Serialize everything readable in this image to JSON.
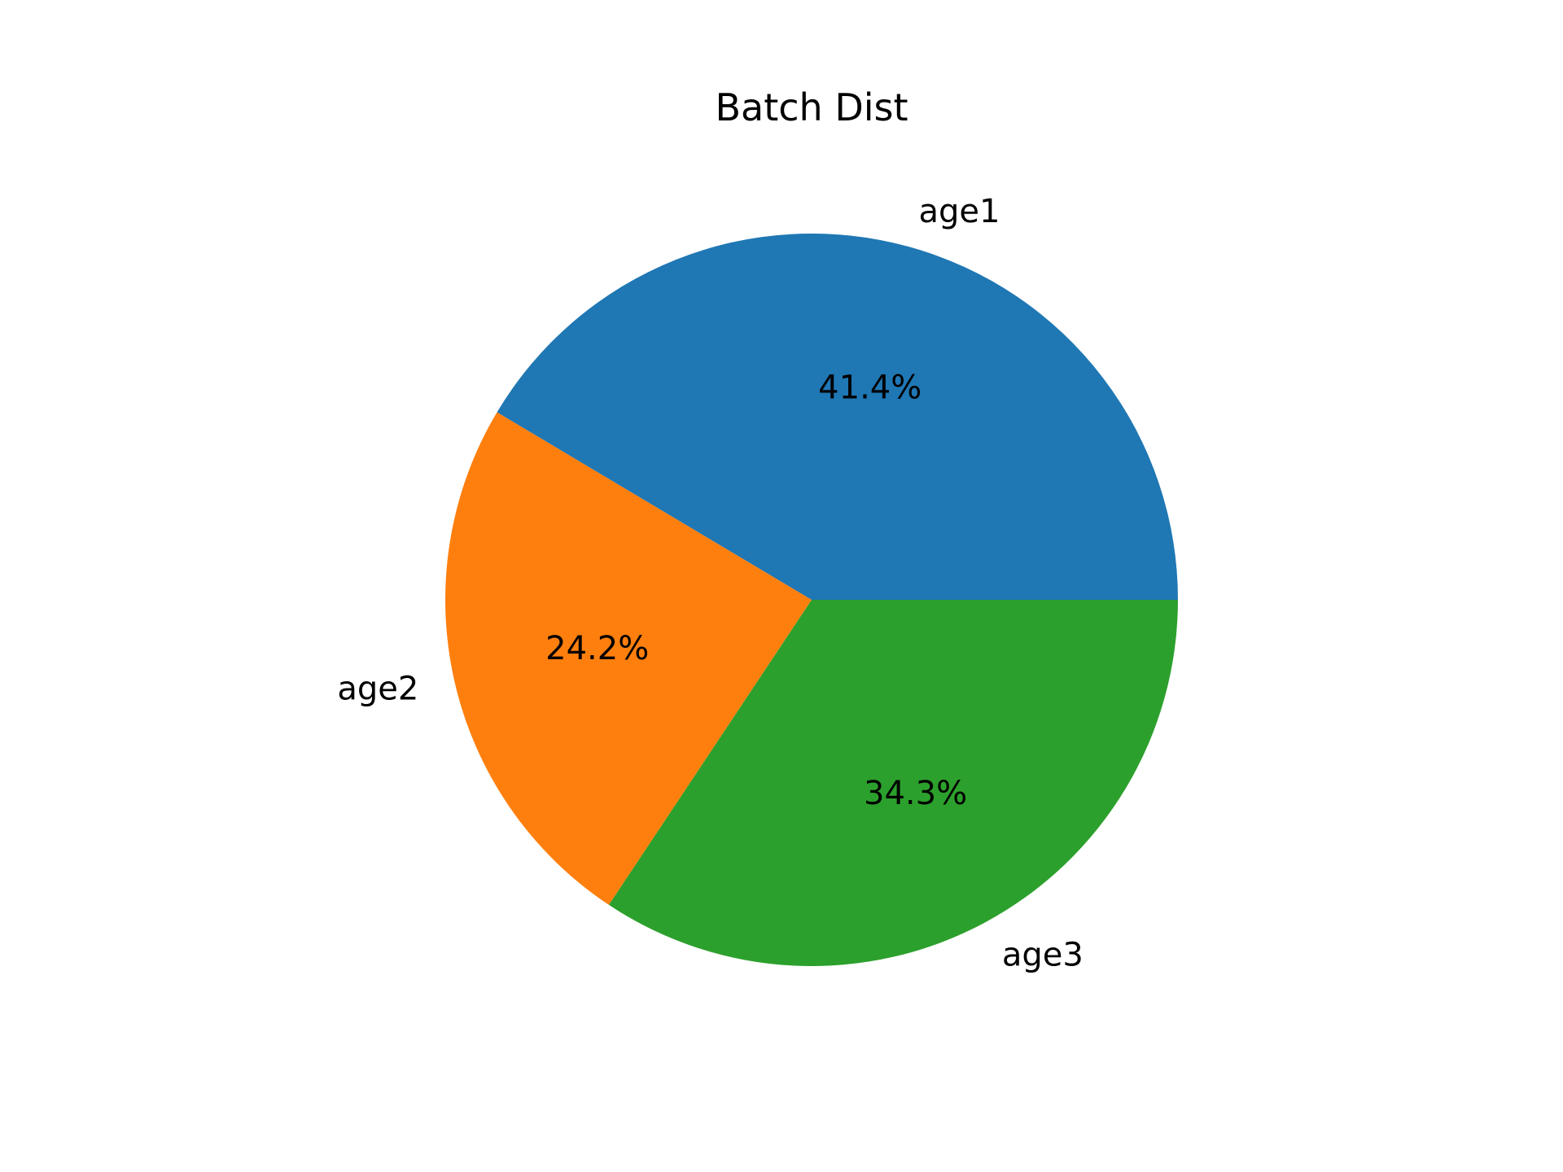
{
  "chart_data": {
    "type": "pie",
    "title": "Batch Dist",
    "categories": [
      "age1",
      "age2",
      "age3"
    ],
    "values": [
      41.4,
      24.2,
      34.3
    ],
    "percent_labels": [
      "41.4%",
      "24.2%",
      "34.3%"
    ],
    "colors": [
      "#1f77b4",
      "#ff7f0e",
      "#2ca02c"
    ],
    "start_angle_deg": 0,
    "direction": "counterclockwise"
  }
}
